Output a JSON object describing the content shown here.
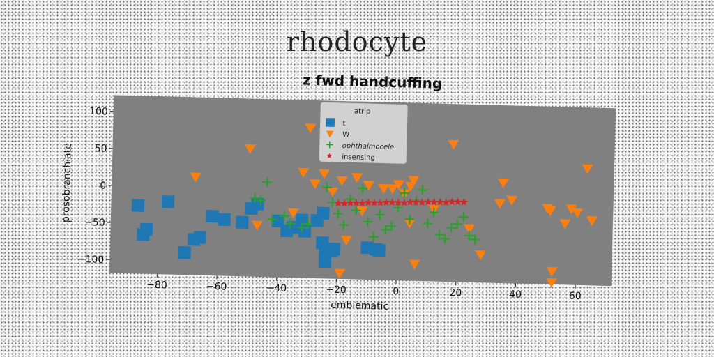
{
  "figure": {
    "suptitle": "rhodocyte"
  },
  "chart_data": {
    "type": "scatter",
    "title": "z fwd handcuffing",
    "xlabel": "emblematic",
    "ylabel": "prosobranchiate",
    "xlim": [
      -96,
      72
    ],
    "ylim": [
      -118,
      122
    ],
    "xticks": [
      -80,
      -60,
      -40,
      -20,
      0,
      20,
      40,
      60
    ],
    "yticks": [
      -100,
      -50,
      0,
      50,
      100
    ],
    "grid": false,
    "legend": {
      "placement": "top-center",
      "title": "atrip"
    },
    "background": "#808080",
    "series": [
      {
        "name": "t",
        "marker": "square",
        "color": "#1f77b4",
        "points": [
          [
            -87,
            -26
          ],
          [
            -85,
            -65
          ],
          [
            -84,
            -58
          ],
          [
            -77,
            -20
          ],
          [
            -71,
            -88
          ],
          [
            -68,
            -70
          ],
          [
            -66,
            -67
          ],
          [
            -62,
            -38
          ],
          [
            -58,
            -42
          ],
          [
            -52,
            -45
          ],
          [
            -49,
            -26
          ],
          [
            -47,
            -20
          ],
          [
            -40,
            -42
          ],
          [
            -37,
            -55
          ],
          [
            -35,
            -50
          ],
          [
            -32,
            -40
          ],
          [
            -31,
            -55
          ],
          [
            -27,
            -40
          ],
          [
            -25,
            -30
          ],
          [
            -25,
            -70
          ],
          [
            -24,
            -85
          ],
          [
            -24,
            -95
          ],
          [
            -22,
            -80
          ],
          [
            -21,
            -78
          ],
          [
            -10,
            -75
          ],
          [
            -7,
            -77
          ],
          [
            -6,
            -78
          ]
        ]
      },
      {
        "name": "W",
        "marker": "triangle-down",
        "color": "#ff7f0e",
        "points": [
          [
            -68,
            15
          ],
          [
            -50,
            55
          ],
          [
            -47,
            -48
          ],
          [
            -35,
            -30
          ],
          [
            -32,
            25
          ],
          [
            -30,
            85
          ],
          [
            -28,
            10
          ],
          [
            -25,
            24
          ],
          [
            -22,
            0
          ],
          [
            -19,
            15
          ],
          [
            -17,
            -65
          ],
          [
            -19,
            -110
          ],
          [
            -14,
            20
          ],
          [
            -12,
            -25
          ],
          [
            -10,
            10
          ],
          [
            -5,
            6
          ],
          [
            -2,
            6
          ],
          [
            0,
            12
          ],
          [
            2,
            0
          ],
          [
            4,
            10
          ],
          [
            5,
            18
          ],
          [
            4,
            -40
          ],
          [
            6,
            -95
          ],
          [
            12,
            -20
          ],
          [
            18,
            68
          ],
          [
            24,
            -45
          ],
          [
            28,
            -80
          ],
          [
            34,
            -10
          ],
          [
            35,
            18
          ],
          [
            38,
            -5
          ],
          [
            50,
            -15
          ],
          [
            51,
            -18
          ],
          [
            52,
            -115
          ],
          [
            52,
            -100
          ],
          [
            56,
            -35
          ],
          [
            58,
            -15
          ],
          [
            60,
            -20
          ],
          [
            63,
            40
          ],
          [
            65,
            -30
          ]
        ]
      },
      {
        "name": "ophthalmocele",
        "marker": "plus",
        "color": "#2ca02c",
        "points": [
          [
            -48,
            -12
          ],
          [
            -46,
            -15
          ],
          [
            -44,
            10
          ],
          [
            -42,
            -40
          ],
          [
            -38,
            -35
          ],
          [
            -36,
            -45
          ],
          [
            -32,
            -50
          ],
          [
            -30,
            -45
          ],
          [
            -24,
            5
          ],
          [
            -22,
            -15
          ],
          [
            -20,
            -30
          ],
          [
            -18,
            -45
          ],
          [
            -16,
            -10
          ],
          [
            -14,
            -25
          ],
          [
            -12,
            5
          ],
          [
            -10,
            -40
          ],
          [
            -8,
            -60
          ],
          [
            -6,
            -30
          ],
          [
            -4,
            -50
          ],
          [
            -2,
            -45
          ],
          [
            0,
            -20
          ],
          [
            2,
            0
          ],
          [
            4,
            -35
          ],
          [
            6,
            -10
          ],
          [
            8,
            5
          ],
          [
            10,
            -40
          ],
          [
            12,
            -25
          ],
          [
            14,
            -55
          ],
          [
            16,
            -60
          ],
          [
            18,
            -45
          ],
          [
            20,
            -40
          ],
          [
            22,
            -30
          ],
          [
            24,
            -55
          ],
          [
            26,
            -60
          ]
        ]
      },
      {
        "name": "insensing",
        "marker": "star",
        "color": "#d62728",
        "points": [
          [
            -20,
            -16
          ],
          [
            -18,
            -16
          ],
          [
            -16,
            -15
          ],
          [
            -14,
            -15
          ],
          [
            -12,
            -15
          ],
          [
            -10,
            -14
          ],
          [
            -8,
            -14
          ],
          [
            -6,
            -14
          ],
          [
            -4,
            -13
          ],
          [
            -2,
            -13
          ],
          [
            0,
            -13
          ],
          [
            2,
            -13
          ],
          [
            4,
            -12
          ],
          [
            6,
            -12
          ],
          [
            8,
            -12
          ],
          [
            10,
            -11
          ],
          [
            12,
            -11
          ],
          [
            14,
            -11
          ],
          [
            16,
            -11
          ],
          [
            18,
            -10
          ],
          [
            20,
            -10
          ],
          [
            22,
            -10
          ]
        ]
      }
    ]
  }
}
